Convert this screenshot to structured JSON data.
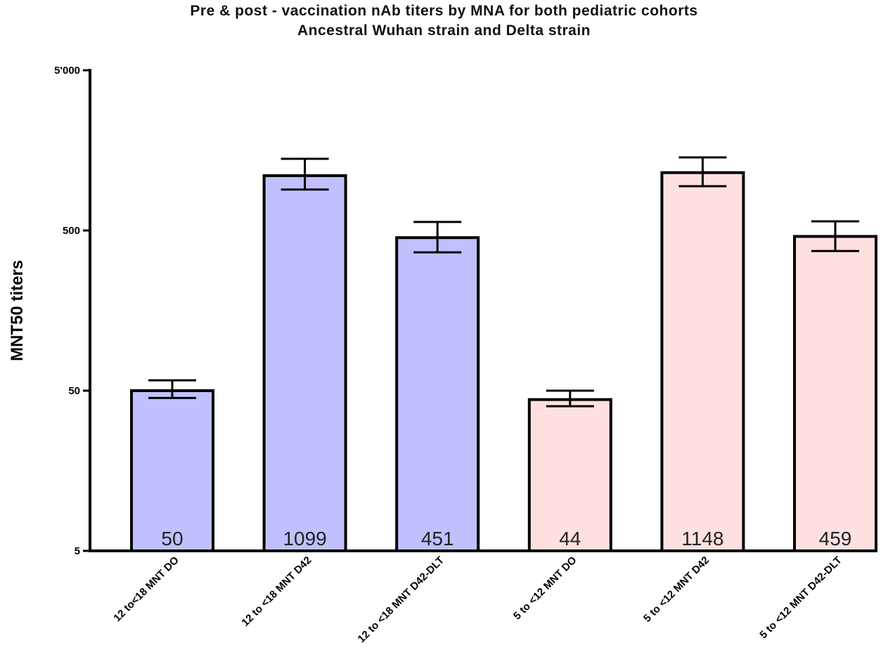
{
  "chart_data": {
    "type": "bar",
    "title": "Pre & post - vaccination nAb titers by MNA for both pediatric cohorts",
    "subtitle": "Ancestral  Wuhan strain and  Delta strain",
    "ylabel": "MNT50 titers",
    "xlabel": "",
    "yscale": "log",
    "ylim": [
      5,
      5000
    ],
    "yticks": [
      5,
      50,
      500,
      5000
    ],
    "ytick_labels": [
      "5",
      "50",
      "500",
      "5'000"
    ],
    "grid": false,
    "legend": "none",
    "categories": [
      "12 to<18 MNT DO",
      "12 to <18 MNT D42",
      "12 to <18 MNT D42-DLT",
      "5 to <12 MNT DO",
      "5 to <12 MNT D42",
      "5 to <12 MNT D42-DLT"
    ],
    "values": [
      50,
      1099,
      451,
      44,
      1148,
      459
    ],
    "value_labels": [
      "50",
      "1099",
      "451",
      "44",
      "1148",
      "459"
    ],
    "error_low": [
      45,
      900,
      365,
      40,
      945,
      372
    ],
    "error_high": [
      58,
      1400,
      565,
      50,
      1430,
      570
    ],
    "bar_colors": [
      "#c0c0ff",
      "#c0c0ff",
      "#c0c0ff",
      "#ffe0e0",
      "#ffe0e0",
      "#ffe0e0"
    ]
  }
}
